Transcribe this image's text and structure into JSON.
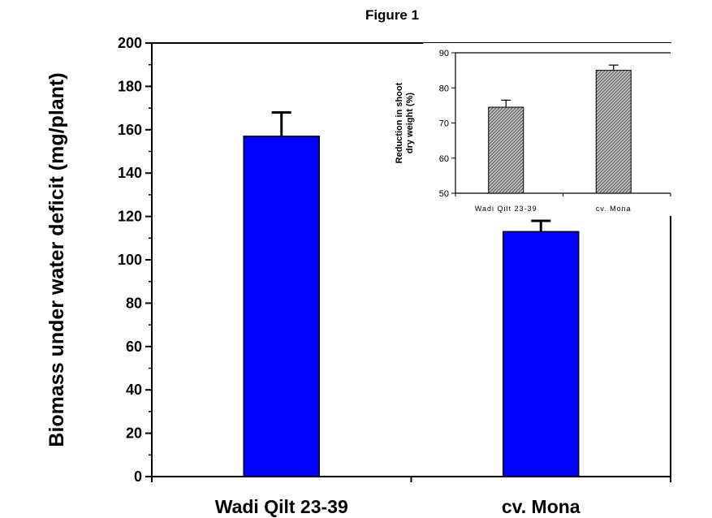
{
  "figure_title": "Figure 1",
  "chart_data": [
    {
      "type": "bar",
      "title": "",
      "xlabel": "",
      "ylabel": "Biomass under water deficit (mg/plant)",
      "categories": [
        "Wadi Qilt 23-39",
        "cv. Mona"
      ],
      "values": [
        157,
        113
      ],
      "errors": [
        11,
        5
      ],
      "ylim": [
        0,
        200
      ],
      "yticks": [
        0,
        20,
        40,
        60,
        80,
        100,
        120,
        140,
        160,
        180,
        200
      ],
      "bar_color": "#0000ff",
      "grid": false
    },
    {
      "type": "bar",
      "title": "",
      "xlabel": "",
      "ylabel": "Reduction in shoot dry weight (%)",
      "ylabel_lines": [
        "Reduction in shoot",
        "dry weight (%)"
      ],
      "categories": [
        "Wadi Qilt 23-39",
        "cv. Mona"
      ],
      "values": [
        74.5,
        85
      ],
      "errors": [
        2,
        1.5
      ],
      "ylim": [
        50,
        90
      ],
      "yticks": [
        50,
        60,
        70,
        80,
        90
      ],
      "bar_fill": "hatched grey",
      "grid": false,
      "placement": "inset top-right"
    }
  ]
}
